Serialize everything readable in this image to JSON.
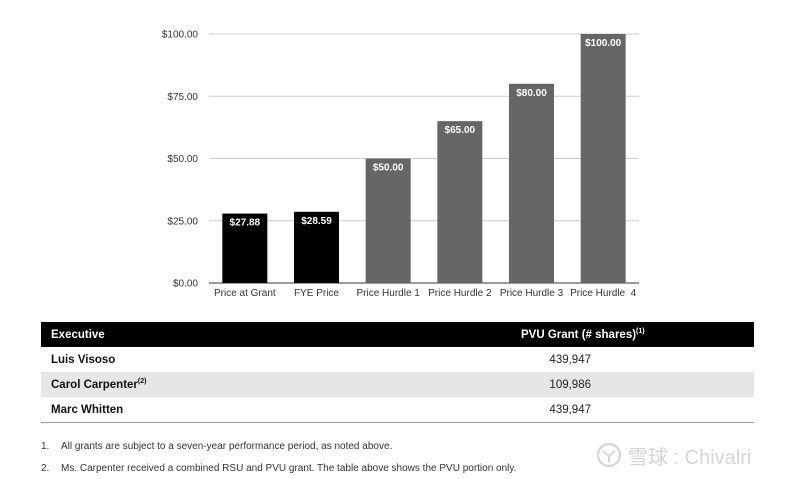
{
  "chart_data": {
    "type": "bar",
    "categories": [
      "Price at Grant",
      "FYE Price",
      "Price Hurdle 1",
      "Price Hurdle 2",
      "Price Hurdle 3",
      "Price Hurdle  4"
    ],
    "values": [
      27.88,
      28.59,
      50.0,
      65.0,
      80.0,
      100.0
    ],
    "value_labels": [
      "$27.88",
      "$28.59",
      "$50.00",
      "$65.00",
      "$80.00",
      "$100.00"
    ],
    "bar_colors": [
      "#000000",
      "#000000",
      "#666666",
      "#666666",
      "#666666",
      "#666666"
    ],
    "yticks": [
      0,
      25,
      50,
      75,
      100
    ],
    "ytick_labels": [
      "$0.00",
      "$25.00",
      "$50.00",
      "$75.00",
      "$100.00"
    ],
    "ylim": [
      0,
      100
    ],
    "grid": true
  },
  "table": {
    "headers": {
      "executive": "Executive",
      "grant": "PVU Grant (# shares)",
      "grant_sup": "(1)"
    },
    "rows": [
      {
        "name": "Luis Visoso",
        "sup": "",
        "value": "439,947"
      },
      {
        "name": "Carol Carpenter",
        "sup": "(2)",
        "value": "109,986"
      },
      {
        "name": "Marc Whitten",
        "sup": "",
        "value": "439,947"
      }
    ]
  },
  "footnotes": [
    {
      "num": "1.",
      "text": "All grants are subject to a seven-year performance period, as noted above."
    },
    {
      "num": "2.",
      "text": "Ms. Carpenter received a combined RSU and PVU grant. The table above shows the PVU portion only."
    }
  ],
  "watermark": {
    "text": "雪球 : Chivalri",
    "icon": "snowball-logo-icon"
  }
}
